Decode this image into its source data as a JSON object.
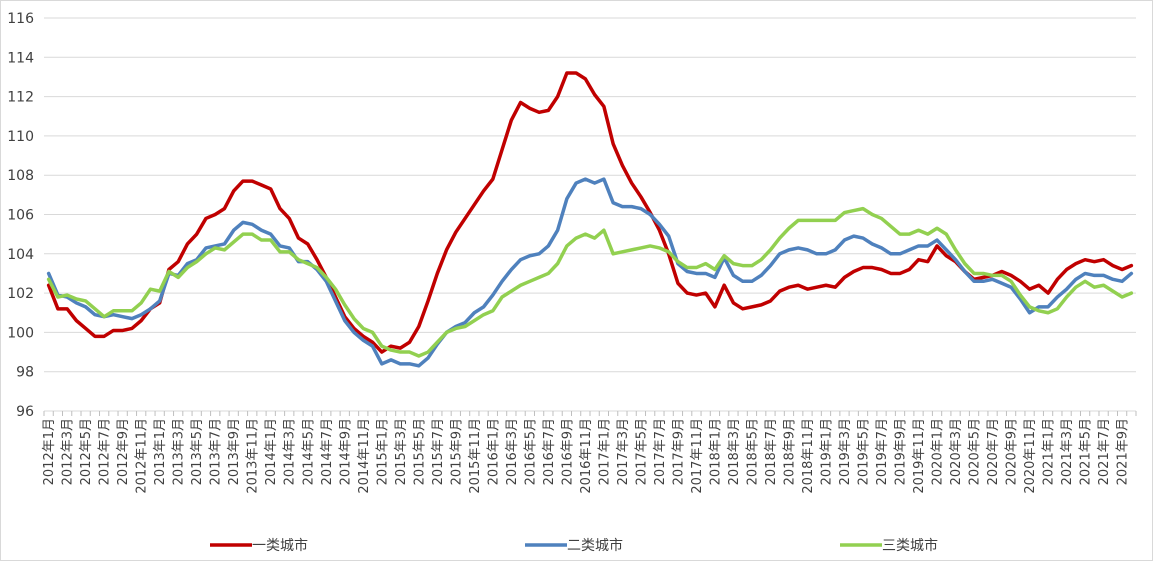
{
  "chart_data": {
    "type": "line",
    "ylim": [
      96,
      116
    ],
    "y_ticks": [
      "96",
      "98",
      "100",
      "102",
      "104",
      "106",
      "108",
      "110",
      "112",
      "114",
      "116"
    ],
    "grid": "horizontal",
    "legend_position": "bottom",
    "x": [
      "2012年1月",
      "2012年2月",
      "2012年3月",
      "2012年4月",
      "2012年5月",
      "2012年6月",
      "2012年7月",
      "2012年8月",
      "2012年9月",
      "2012年10月",
      "2012年11月",
      "2012年12月",
      "2013年1月",
      "2013年2月",
      "2013年3月",
      "2013年4月",
      "2013年5月",
      "2013年6月",
      "2013年7月",
      "2013年8月",
      "2013年9月",
      "2013年10月",
      "2013年11月",
      "2013年12月",
      "2014年1月",
      "2014年2月",
      "2014年3月",
      "2014年4月",
      "2014年5月",
      "2014年6月",
      "2014年7月",
      "2014年8月",
      "2014年9月",
      "2014年10月",
      "2014年11月",
      "2014年12月",
      "2015年1月",
      "2015年2月",
      "2015年3月",
      "2015年4月",
      "2015年5月",
      "2015年6月",
      "2015年7月",
      "2015年8月",
      "2015年9月",
      "2015年10月",
      "2015年11月",
      "2015年12月",
      "2016年1月",
      "2016年2月",
      "2016年3月",
      "2016年4月",
      "2016年5月",
      "2016年6月",
      "2016年7月",
      "2016年8月",
      "2016年9月",
      "2016年10月",
      "2016年11月",
      "2016年12月",
      "2017年1月",
      "2017年2月",
      "2017年3月",
      "2017年4月",
      "2017年5月",
      "2017年6月",
      "2017年7月",
      "2017年8月",
      "2017年9月",
      "2017年10月",
      "2017年11月",
      "2017年12月",
      "2018年1月",
      "2018年2月",
      "2018年3月",
      "2018年4月",
      "2018年5月",
      "2018年6月",
      "2018年7月",
      "2018年8月",
      "2018年9月",
      "2018年10月",
      "2018年11月",
      "2018年12月",
      "2019年1月",
      "2019年2月",
      "2019年3月",
      "2019年4月",
      "2019年5月",
      "2019年6月",
      "2019年7月",
      "2019年8月",
      "2019年9月",
      "2019年10月",
      "2019年11月",
      "2019年12月",
      "2020年1月",
      "2020年2月",
      "2020年3月",
      "2020年4月",
      "2020年5月",
      "2020年6月",
      "2020年7月",
      "2020年8月",
      "2020年9月",
      "2020年10月",
      "2020年11月",
      "2020年12月",
      "2021年1月",
      "2021年2月",
      "2021年3月",
      "2021年4月",
      "2021年5月",
      "2021年6月",
      "2021年7月",
      "2021年8月",
      "2021年9月",
      "2021年10月"
    ],
    "x_tick_labels": [
      "2012年1月",
      "2012年3月",
      "2012年5月",
      "2012年7月",
      "2012年9月",
      "2012年11月",
      "2013年1月",
      "2013年3月",
      "2013年5月",
      "2013年7月",
      "2013年9月",
      "2013年11月",
      "2014年1月",
      "2014年3月",
      "2014年5月",
      "2014年7月",
      "2014年9月",
      "2014年11月",
      "2015年1月",
      "2015年3月",
      "2015年5月",
      "2015年7月",
      "2015年9月",
      "2015年11月",
      "2016年1月",
      "2016年3月",
      "2016年5月",
      "2016年7月",
      "2016年9月",
      "2016年11月",
      "2017年1月",
      "2017年3月",
      "2017年5月",
      "2017年7月",
      "2017年9月",
      "2017年11月",
      "2018年1月",
      "2018年3月",
      "2018年5月",
      "2018年7月",
      "2018年9月",
      "2018年11月",
      "2019年1月",
      "2019年3月",
      "2019年5月",
      "2019年7月",
      "2019年9月",
      "2019年11月",
      "2020年1月",
      "2020年3月",
      "2020年5月",
      "2020年7月",
      "2020年9月",
      "2020年11月",
      "2021年1月",
      "2021年3月",
      "2021年5月",
      "2021年7月",
      "2021年9月"
    ],
    "series": [
      {
        "name": "一类城市",
        "color": "#c00000",
        "values": [
          102.4,
          101.2,
          101.2,
          100.6,
          100.2,
          99.8,
          99.8,
          100.1,
          100.1,
          100.2,
          100.6,
          101.2,
          101.5,
          103.2,
          103.6,
          104.5,
          105.0,
          105.8,
          106.0,
          106.3,
          107.2,
          107.7,
          107.7,
          107.5,
          107.3,
          106.3,
          105.8,
          104.8,
          104.5,
          103.7,
          102.8,
          101.8,
          100.8,
          100.2,
          99.8,
          99.5,
          99.0,
          99.3,
          99.2,
          99.5,
          100.3,
          101.6,
          103.0,
          104.2,
          105.1,
          105.8,
          106.5,
          107.2,
          107.8,
          109.3,
          110.8,
          111.7,
          111.4,
          111.2,
          111.3,
          112.0,
          113.2,
          113.2,
          112.9,
          112.1,
          111.5,
          109.6,
          108.5,
          107.6,
          106.9,
          106.1,
          105.2,
          104.0,
          102.5,
          102.0,
          101.9,
          102.0,
          101.3,
          102.4,
          101.5,
          101.2,
          101.3,
          101.4,
          101.6,
          102.1,
          102.3,
          102.4,
          102.2,
          102.3,
          102.4,
          102.3,
          102.8,
          103.1,
          103.3,
          103.3,
          103.2,
          103.0,
          103.0,
          103.2,
          103.7,
          103.6,
          104.4,
          103.9,
          103.6,
          103.1,
          102.7,
          102.8,
          102.9,
          103.1,
          102.9,
          102.6,
          102.2,
          102.4,
          102.0,
          102.7,
          103.2,
          103.5,
          103.7,
          103.6,
          103.7,
          103.4,
          103.2,
          103.4
        ]
      },
      {
        "name": "二类城市",
        "color": "#4f81bd",
        "values": [
          103.0,
          101.9,
          101.8,
          101.5,
          101.3,
          100.9,
          100.8,
          100.9,
          100.8,
          100.7,
          100.9,
          101.2,
          101.6,
          103.0,
          102.9,
          103.5,
          103.7,
          104.3,
          104.4,
          104.5,
          105.2,
          105.6,
          105.5,
          105.2,
          105.0,
          104.4,
          104.3,
          103.6,
          103.6,
          103.2,
          102.6,
          101.6,
          100.6,
          100.0,
          99.6,
          99.3,
          98.4,
          98.6,
          98.4,
          98.4,
          98.3,
          98.7,
          99.4,
          100.0,
          100.3,
          100.5,
          101.0,
          101.3,
          101.9,
          102.6,
          103.2,
          103.7,
          103.9,
          104.0,
          104.4,
          105.2,
          106.8,
          107.6,
          107.8,
          107.6,
          107.8,
          106.6,
          106.4,
          106.4,
          106.3,
          106.0,
          105.5,
          104.9,
          103.5,
          103.1,
          103.0,
          103.0,
          102.8,
          103.8,
          102.9,
          102.6,
          102.6,
          102.9,
          103.4,
          104.0,
          104.2,
          104.3,
          104.2,
          104.0,
          104.0,
          104.2,
          104.7,
          104.9,
          104.8,
          104.5,
          104.3,
          104.0,
          104.0,
          104.2,
          104.4,
          104.4,
          104.7,
          104.2,
          103.7,
          103.1,
          102.6,
          102.6,
          102.7,
          102.5,
          102.3,
          101.7,
          101.0,
          101.3,
          101.3,
          101.8,
          102.2,
          102.7,
          103.0,
          102.9,
          102.9,
          102.7,
          102.6,
          103.0
        ]
      },
      {
        "name": "三类城市",
        "color": "#92d050",
        "values": [
          102.7,
          101.8,
          101.9,
          101.7,
          101.6,
          101.2,
          100.8,
          101.1,
          101.1,
          101.1,
          101.5,
          102.2,
          102.1,
          103.1,
          102.8,
          103.3,
          103.6,
          104.0,
          104.3,
          104.2,
          104.6,
          105.0,
          105.0,
          104.7,
          104.7,
          104.1,
          104.1,
          103.7,
          103.5,
          103.3,
          102.8,
          102.2,
          101.4,
          100.7,
          100.2,
          100.0,
          99.3,
          99.1,
          99.0,
          99.0,
          98.8,
          99.0,
          99.5,
          100.0,
          100.2,
          100.3,
          100.6,
          100.9,
          101.1,
          101.8,
          102.1,
          102.4,
          102.6,
          102.8,
          103.0,
          103.5,
          104.4,
          104.8,
          105.0,
          104.8,
          105.2,
          104.0,
          104.1,
          104.2,
          104.3,
          104.4,
          104.3,
          104.1,
          103.6,
          103.3,
          103.3,
          103.5,
          103.2,
          103.9,
          103.5,
          103.4,
          103.4,
          103.7,
          104.2,
          104.8,
          105.3,
          105.7,
          105.7,
          105.7,
          105.7,
          105.7,
          106.1,
          106.2,
          106.3,
          106.0,
          105.8,
          105.4,
          105.0,
          105.0,
          105.2,
          105.0,
          105.3,
          105.0,
          104.2,
          103.5,
          103.0,
          103.0,
          102.9,
          102.9,
          102.6,
          101.9,
          101.3,
          101.1,
          101.0,
          101.2,
          101.8,
          102.3,
          102.6,
          102.3,
          102.4,
          102.1,
          101.8,
          102.0
        ]
      }
    ]
  }
}
